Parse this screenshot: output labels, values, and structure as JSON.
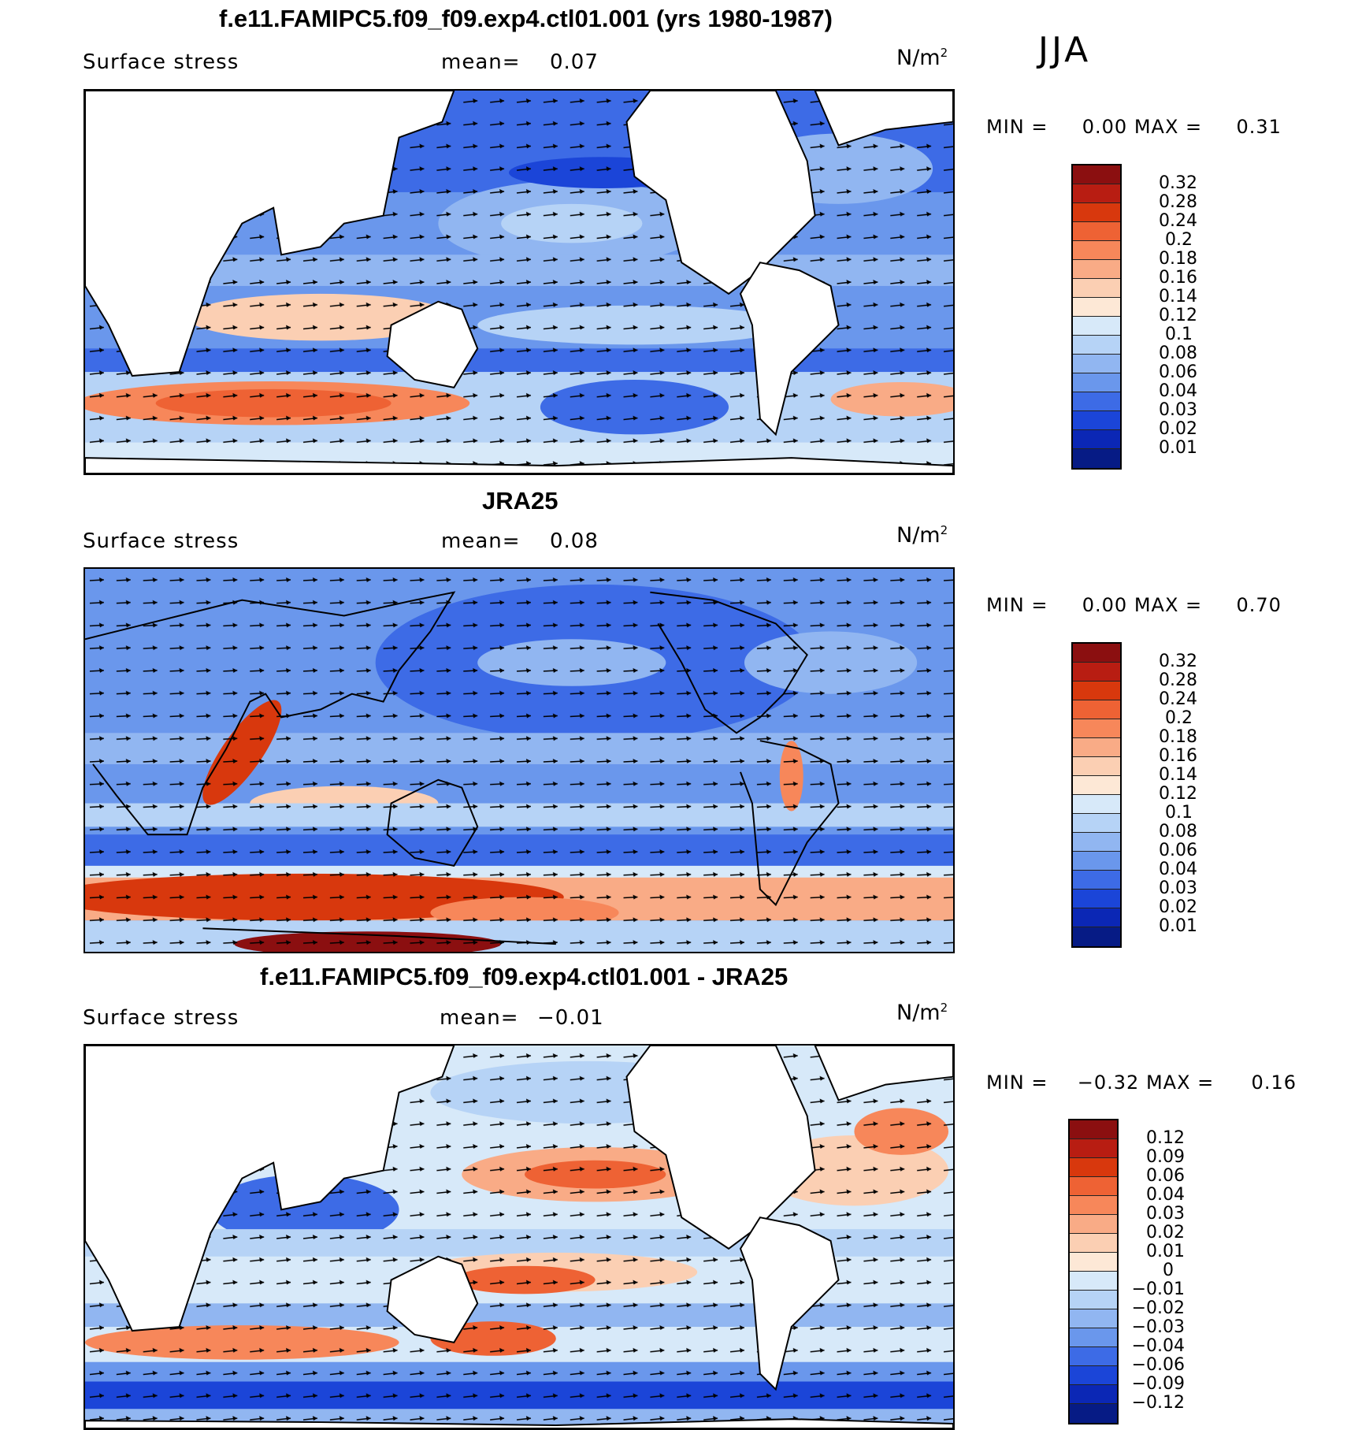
{
  "season": "JJA",
  "panels": [
    {
      "title": "f.e11.FAMIPC5.f09_f09.exp4.ctl01.001 (yrs 1980-1987)",
      "variable": "Surface stress",
      "mean_label": "mean=",
      "mean_value": "0.07",
      "unit_base": "N/m",
      "unit_exp": "2",
      "min_label": "MIN =",
      "min_value": "0.00",
      "max_label": "MAX =",
      "max_value": "0.31",
      "legend_labels": [
        "0.32",
        "0.28",
        "0.24",
        "0.2",
        "0.18",
        "0.16",
        "0.14",
        "0.12",
        "0.1",
        "0.08",
        "0.06",
        "0.04",
        "0.03",
        "0.02",
        "0.01"
      ],
      "colors": [
        "#8b0f10",
        "#b81d12",
        "#d8380d",
        "#ee6234",
        "#f7875a",
        "#f9ab86",
        "#fbcfb3",
        "#fde8d6",
        "#d7e9f9",
        "#b6d3f6",
        "#91b6f1",
        "#6a97ec",
        "#3d6be6",
        "#1b45d8",
        "#0b27b5",
        "#061b85"
      ]
    },
    {
      "title": "JRA25",
      "variable": "Surface stress",
      "mean_label": "mean=",
      "mean_value": "0.08",
      "unit_base": "N/m",
      "unit_exp": "2",
      "min_label": "MIN =",
      "min_value": "0.00",
      "max_label": "MAX =",
      "max_value": "0.70",
      "legend_labels": [
        "0.32",
        "0.28",
        "0.24",
        "0.2",
        "0.18",
        "0.16",
        "0.14",
        "0.12",
        "0.1",
        "0.08",
        "0.06",
        "0.04",
        "0.03",
        "0.02",
        "0.01"
      ],
      "colors": [
        "#8b0f10",
        "#b81d12",
        "#d8380d",
        "#ee6234",
        "#f7875a",
        "#f9ab86",
        "#fbcfb3",
        "#fde8d6",
        "#d7e9f9",
        "#b6d3f6",
        "#91b6f1",
        "#6a97ec",
        "#3d6be6",
        "#1b45d8",
        "#0b27b5",
        "#061b85"
      ]
    },
    {
      "title": "f.e11.FAMIPC5.f09_f09.exp4.ctl01.001 - JRA25",
      "variable": "Surface stress",
      "mean_label": "mean=",
      "mean_value": "−0.01",
      "unit_base": "N/m",
      "unit_exp": "2",
      "min_label": "MIN =",
      "min_value": "−0.32",
      "max_label": "MAX =",
      "max_value": "0.16",
      "legend_labels": [
        "0.12",
        "0.09",
        "0.06",
        "0.04",
        "0.03",
        "0.02",
        "0.01",
        "0",
        "−0.01",
        "−0.02",
        "−0.03",
        "−0.04",
        "−0.06",
        "−0.09",
        "−0.12"
      ],
      "colors": [
        "#8b0f10",
        "#b81d12",
        "#d8380d",
        "#ee6234",
        "#f7875a",
        "#f9ab86",
        "#fbcfb3",
        "#fde8d6",
        "#d7e9f9",
        "#b6d3f6",
        "#91b6f1",
        "#6a97ec",
        "#3d6be6",
        "#1b45d8",
        "#0b27b5",
        "#061b85"
      ]
    }
  ]
}
